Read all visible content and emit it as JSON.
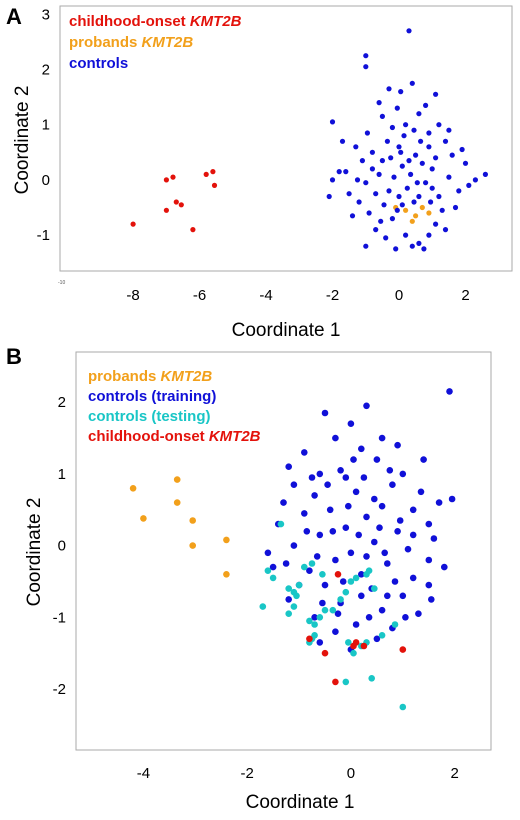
{
  "chart_data": [
    {
      "panel": "A",
      "type": "scatter",
      "xlabel": "Coordinate 1",
      "ylabel": "Coordinate 2",
      "xlim": [
        -10.2,
        3.4
      ],
      "ylim": [
        -1.65,
        3.15
      ],
      "xticks": [
        -8,
        -6,
        -4,
        -2,
        0,
        2
      ],
      "yticks": [
        -1,
        0,
        1,
        2,
        3
      ],
      "corner_label": "-10",
      "grid": false,
      "legend_position": "top-left",
      "series": [
        {
          "name": "childhood-onset",
          "name_italic": "KMT2B",
          "color": "#e3120b",
          "points": [
            [
              -8.0,
              -0.8
            ],
            [
              -7.0,
              0.0
            ],
            [
              -6.8,
              0.05
            ],
            [
              -7.0,
              -0.55
            ],
            [
              -6.7,
              -0.4
            ],
            [
              -6.55,
              -0.45
            ],
            [
              -6.2,
              -0.9
            ],
            [
              -5.8,
              0.1
            ],
            [
              -5.6,
              0.15
            ],
            [
              -5.55,
              -0.1
            ]
          ]
        },
        {
          "name": "probands",
          "name_italic": "KMT2B",
          "color": "#f2a01b",
          "points": [
            [
              -0.1,
              -0.5
            ],
            [
              0.2,
              -0.55
            ],
            [
              0.5,
              -0.65
            ],
            [
              0.7,
              -0.5
            ],
            [
              0.9,
              -0.6
            ],
            [
              0.4,
              -0.75
            ]
          ]
        },
        {
          "name": "controls",
          "name_italic": "",
          "color": "#1010d8",
          "points": [
            [
              0.3,
              2.7
            ],
            [
              -1.0,
              2.25
            ],
            [
              -1.0,
              2.05
            ],
            [
              -0.3,
              1.65
            ],
            [
              1.1,
              1.55
            ],
            [
              0.4,
              1.75
            ],
            [
              0.05,
              1.6
            ],
            [
              -0.6,
              1.4
            ],
            [
              -2.0,
              1.05
            ],
            [
              -0.5,
              1.15
            ],
            [
              0.6,
              1.2
            ],
            [
              0.2,
              1.0
            ],
            [
              -0.2,
              0.95
            ],
            [
              1.4,
              0.7
            ],
            [
              1.9,
              0.55
            ],
            [
              0.9,
              0.85
            ],
            [
              -1.3,
              0.6
            ],
            [
              -0.8,
              0.5
            ],
            [
              0.0,
              0.6
            ],
            [
              -1.6,
              0.15
            ],
            [
              -2.0,
              0.0
            ],
            [
              -1.8,
              0.15
            ],
            [
              -1.0,
              -0.05
            ],
            [
              -0.5,
              0.35
            ],
            [
              0.5,
              0.45
            ],
            [
              1.0,
              0.2
            ],
            [
              1.5,
              0.05
            ],
            [
              2.0,
              0.3
            ],
            [
              2.3,
              0.0
            ],
            [
              2.6,
              0.1
            ],
            [
              1.8,
              -0.2
            ],
            [
              1.2,
              -0.3
            ],
            [
              -0.3,
              -0.2
            ],
            [
              -0.6,
              0.1
            ],
            [
              0.8,
              -0.05
            ],
            [
              -1.2,
              -0.4
            ],
            [
              -1.5,
              -0.25
            ],
            [
              -0.9,
              -0.6
            ],
            [
              -0.2,
              -0.7
            ],
            [
              0.1,
              -0.45
            ],
            [
              0.6,
              -0.3
            ],
            [
              1.1,
              -0.8
            ],
            [
              0.2,
              -1.0
            ],
            [
              -0.7,
              -0.9
            ],
            [
              0.4,
              -1.2
            ],
            [
              -1.0,
              -1.2
            ],
            [
              0.9,
              -1.0
            ],
            [
              -0.4,
              -1.05
            ],
            [
              0.6,
              -1.15
            ],
            [
              1.3,
              -0.55
            ],
            [
              0.1,
              0.25
            ],
            [
              0.35,
              0.1
            ],
            [
              -0.15,
              0.05
            ],
            [
              0.7,
              0.3
            ],
            [
              -0.8,
              0.2
            ],
            [
              1.6,
              0.45
            ],
            [
              -1.1,
              0.35
            ],
            [
              0.25,
              -0.15
            ],
            [
              -0.45,
              -0.45
            ],
            [
              0.9,
              0.6
            ],
            [
              0.45,
              0.9
            ],
            [
              -0.35,
              0.7
            ],
            [
              1.2,
              1.0
            ],
            [
              -1.4,
              -0.65
            ],
            [
              1.7,
              -0.5
            ],
            [
              0.0,
              -0.3
            ],
            [
              -0.25,
              0.4
            ],
            [
              0.55,
              -0.05
            ],
            [
              1.0,
              -0.15
            ],
            [
              -0.7,
              -0.25
            ],
            [
              0.15,
              0.8
            ],
            [
              -0.05,
              1.3
            ],
            [
              0.8,
              1.35
            ],
            [
              -1.7,
              0.7
            ],
            [
              2.1,
              -0.1
            ],
            [
              -2.1,
              -0.3
            ],
            [
              0.3,
              0.35
            ],
            [
              -0.55,
              -0.75
            ],
            [
              1.4,
              -0.9
            ],
            [
              0.75,
              -1.25
            ],
            [
              -0.1,
              -1.25
            ],
            [
              0.05,
              0.5
            ],
            [
              -0.95,
              0.85
            ],
            [
              0.65,
              0.7
            ],
            [
              1.5,
              0.9
            ],
            [
              -1.25,
              0.0
            ],
            [
              1.1,
              0.4
            ],
            [
              0.45,
              -0.4
            ],
            [
              -0.05,
              -0.55
            ],
            [
              0.95,
              -0.4
            ]
          ]
        }
      ]
    },
    {
      "panel": "B",
      "type": "scatter",
      "xlabel": "Coordinate 1",
      "ylabel": "Coordinate 2",
      "xlim": [
        -5.3,
        2.7
      ],
      "ylim": [
        -2.85,
        2.7
      ],
      "xticks": [
        -4,
        -2,
        0,
        2
      ],
      "yticks": [
        -2,
        -1,
        0,
        1,
        2
      ],
      "grid": false,
      "legend_position": "top-left",
      "series": [
        {
          "name": "probands",
          "name_italic": "KMT2B",
          "color": "#f2a01b",
          "points": [
            [
              -4.2,
              0.8
            ],
            [
              -3.35,
              0.92
            ],
            [
              -4.0,
              0.38
            ],
            [
              -3.35,
              0.6
            ],
            [
              -3.05,
              0.35
            ],
            [
              -3.05,
              0.0
            ],
            [
              -2.4,
              0.08
            ],
            [
              -2.4,
              -0.4
            ]
          ]
        },
        {
          "name": "controls (training)",
          "name_italic": "",
          "color": "#1010d8",
          "points": [
            [
              1.9,
              2.15
            ],
            [
              0.3,
              1.95
            ],
            [
              0.0,
              1.7
            ],
            [
              -0.5,
              1.85
            ],
            [
              0.6,
              1.5
            ],
            [
              -0.3,
              1.5
            ],
            [
              0.9,
              1.4
            ],
            [
              -0.9,
              1.3
            ],
            [
              -1.2,
              1.1
            ],
            [
              0.5,
              1.2
            ],
            [
              0.2,
              1.35
            ],
            [
              -0.6,
              1.0
            ],
            [
              1.4,
              1.2
            ],
            [
              1.0,
              1.0
            ],
            [
              -0.2,
              1.05
            ],
            [
              0.8,
              0.85
            ],
            [
              -1.1,
              0.85
            ],
            [
              1.7,
              0.6
            ],
            [
              1.95,
              0.65
            ],
            [
              -0.7,
              0.7
            ],
            [
              0.1,
              0.75
            ],
            [
              0.6,
              0.55
            ],
            [
              -0.4,
              0.5
            ],
            [
              1.2,
              0.5
            ],
            [
              -0.9,
              0.45
            ],
            [
              0.3,
              0.4
            ],
            [
              1.5,
              0.3
            ],
            [
              -1.4,
              0.3
            ],
            [
              -0.1,
              0.25
            ],
            [
              0.9,
              0.2
            ],
            [
              -0.6,
              0.15
            ],
            [
              0.45,
              0.05
            ],
            [
              -1.1,
              0.0
            ],
            [
              1.1,
              -0.05
            ],
            [
              0.0,
              -0.1
            ],
            [
              -0.3,
              -0.2
            ],
            [
              0.7,
              -0.25
            ],
            [
              1.5,
              -0.2
            ],
            [
              -1.5,
              -0.3
            ],
            [
              -0.8,
              -0.35
            ],
            [
              0.2,
              -0.4
            ],
            [
              1.2,
              -0.45
            ],
            [
              -0.5,
              -0.55
            ],
            [
              0.4,
              -0.6
            ],
            [
              1.0,
              -0.7
            ],
            [
              -1.2,
              -0.75
            ],
            [
              -0.2,
              -0.8
            ],
            [
              0.6,
              -0.9
            ],
            [
              1.3,
              -0.95
            ],
            [
              -0.7,
              -1.0
            ],
            [
              0.1,
              -1.1
            ],
            [
              0.8,
              -1.15
            ],
            [
              -0.3,
              -1.2
            ],
            [
              0.5,
              -1.3
            ],
            [
              0.0,
              -1.45
            ],
            [
              -0.6,
              -1.35
            ],
            [
              1.5,
              -0.55
            ],
            [
              1.8,
              -0.3
            ],
            [
              -1.3,
              0.6
            ],
            [
              0.25,
              0.95
            ],
            [
              -0.45,
              0.85
            ],
            [
              0.75,
              1.05
            ],
            [
              -0.85,
              0.2
            ],
            [
              0.95,
              0.35
            ],
            [
              -0.05,
              0.55
            ],
            [
              0.55,
              0.25
            ],
            [
              1.35,
              0.75
            ],
            [
              -1.0,
              -0.55
            ],
            [
              0.3,
              -0.15
            ],
            [
              -0.15,
              -0.5
            ],
            [
              0.85,
              -0.5
            ],
            [
              1.6,
              0.1
            ],
            [
              -1.6,
              -0.1
            ],
            [
              0.15,
              0.15
            ],
            [
              -0.55,
              -0.8
            ],
            [
              1.05,
              -1.0
            ],
            [
              0.35,
              -1.0
            ],
            [
              -0.25,
              -0.95
            ],
            [
              0.65,
              -0.1
            ],
            [
              -0.75,
              0.95
            ],
            [
              0.05,
              1.2
            ],
            [
              1.2,
              0.15
            ],
            [
              -0.35,
              0.2
            ],
            [
              0.45,
              0.65
            ],
            [
              -1.25,
              -0.25
            ],
            [
              0.7,
              -0.7
            ],
            [
              1.55,
              -0.75
            ],
            [
              -0.65,
              -0.15
            ],
            [
              0.2,
              -0.7
            ],
            [
              -0.1,
              0.95
            ]
          ]
        },
        {
          "name": "controls (testing)",
          "name_italic": "",
          "color": "#19c6c6",
          "points": [
            [
              -1.6,
              -0.35
            ],
            [
              -1.5,
              -0.45
            ],
            [
              -1.2,
              -0.6
            ],
            [
              -1.1,
              -0.65
            ],
            [
              -1.05,
              -0.7
            ],
            [
              -1.1,
              -0.85
            ],
            [
              -1.2,
              -0.95
            ],
            [
              -0.8,
              -1.05
            ],
            [
              -0.7,
              -1.1
            ],
            [
              -0.5,
              -0.9
            ],
            [
              -0.6,
              -1.0
            ],
            [
              -0.75,
              -1.3
            ],
            [
              -0.8,
              -1.35
            ],
            [
              -0.7,
              -1.25
            ],
            [
              -0.35,
              -0.9
            ],
            [
              -0.2,
              -0.75
            ],
            [
              -0.1,
              -0.65
            ],
            [
              0.0,
              -0.5
            ],
            [
              0.1,
              -0.45
            ],
            [
              0.3,
              -0.4
            ],
            [
              0.45,
              -0.6
            ],
            [
              0.35,
              -0.35
            ],
            [
              -0.9,
              -0.3
            ],
            [
              -1.0,
              -0.55
            ],
            [
              -1.35,
              0.3
            ],
            [
              -0.75,
              -0.25
            ],
            [
              -0.55,
              -0.4
            ],
            [
              0.2,
              -1.4
            ],
            [
              -0.05,
              -1.35
            ],
            [
              0.05,
              -1.5
            ],
            [
              0.3,
              -1.35
            ],
            [
              0.6,
              -1.25
            ],
            [
              -0.1,
              -1.9
            ],
            [
              0.4,
              -1.85
            ],
            [
              1.0,
              -2.25
            ],
            [
              0.85,
              -1.1
            ],
            [
              -1.7,
              -0.85
            ]
          ]
        },
        {
          "name": "childhood-onset",
          "name_italic": "KMT2B",
          "color": "#e3120b",
          "points": [
            [
              -0.8,
              -1.3
            ],
            [
              -0.5,
              -1.5
            ],
            [
              -0.3,
              -1.9
            ],
            [
              0.05,
              -1.4
            ],
            [
              0.1,
              -1.35
            ],
            [
              0.25,
              -1.4
            ],
            [
              1.0,
              -1.45
            ],
            [
              -0.25,
              -0.4
            ]
          ]
        }
      ]
    }
  ]
}
